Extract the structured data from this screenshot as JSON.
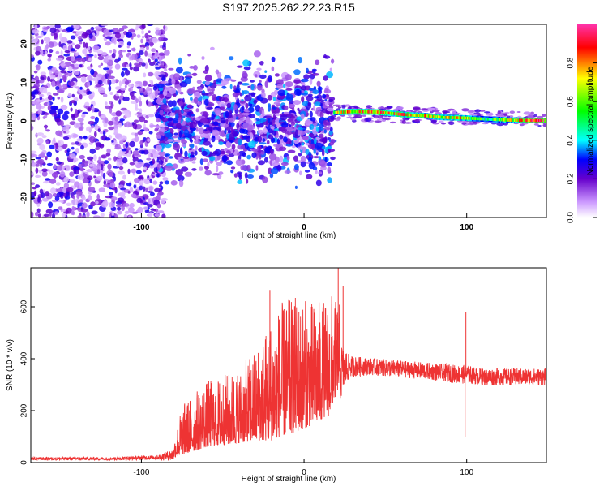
{
  "figure": {
    "title": "S197.2025.262.22.23.R15"
  },
  "chart_data": [
    {
      "type": "heatmap",
      "xlabel": "Height of straight line (km)",
      "ylabel": "Frequency (Hz)",
      "xlim": [
        -168,
        149
      ],
      "ylim": [
        -25,
        25
      ],
      "x_ticks": [
        -100,
        0,
        100
      ],
      "y_ticks": [
        -20,
        -10,
        0,
        10,
        20
      ],
      "grid": false,
      "colorbar": {
        "label": "Normalized spectral amplitude",
        "range": [
          0,
          1
        ],
        "ticks": [
          "0.0",
          "0.2",
          "0.4",
          "0.6",
          "0.8"
        ],
        "colors": [
          "#ffffff",
          "#cc99ff",
          "#6600cc",
          "#0000ff",
          "#00ffff",
          "#00ff00",
          "#ffff00",
          "#ff0000",
          "#ff33aa"
        ]
      },
      "trace": {
        "description_points": [
          {
            "x": 18,
            "y": 2.2,
            "v": 0.75
          },
          {
            "x": 30,
            "y": 2.4,
            "v": 0.9
          },
          {
            "x": 45,
            "y": 2.3,
            "v": 0.95
          },
          {
            "x": 62,
            "y": 1.6,
            "v": 0.9
          },
          {
            "x": 75,
            "y": 1.3,
            "v": 0.85
          },
          {
            "x": 85,
            "y": 0.9,
            "v": 0.8
          },
          {
            "x": 95,
            "y": 0.8,
            "v": 0.9
          },
          {
            "x": 110,
            "y": 0.5,
            "v": 0.6
          },
          {
            "x": 125,
            "y": 0.2,
            "v": 0.75
          },
          {
            "x": 140,
            "y": 0.1,
            "v": 1.0
          }
        ]
      }
    },
    {
      "type": "line",
      "xlabel": "Height of straight line (km)",
      "ylabel": "SNR (10 * v/v)",
      "xlim": [
        -168,
        149
      ],
      "ylim": [
        0,
        750
      ],
      "x_ticks": [
        -100,
        0,
        100
      ],
      "y_ticks": [
        0,
        200,
        400,
        600
      ],
      "grid": false,
      "series": [
        {
          "color": "#ee3333",
          "envelope": {
            "x": [
              -168,
              -120,
              -90,
              -80,
              -75,
              -60,
              -40,
              -30,
              -20,
              -15,
              -5,
              5,
              15,
              22,
              28,
              40,
              60,
              80,
              95,
              100,
              110,
              130,
              149
            ],
            "base": [
              15,
              15,
              20,
              30,
              60,
              100,
              120,
              140,
              160,
              180,
              200,
              220,
              250,
              350,
              370,
              370,
              360,
              350,
              340,
              340,
              330,
              330,
              330
            ],
            "amp": [
              10,
              10,
              15,
              40,
              120,
              160,
              180,
              220,
              300,
              320,
              330,
              300,
              280,
              200,
              70,
              55,
              55,
              55,
              60,
              60,
              55,
              55,
              55
            ]
          },
          "spikes": [
            {
              "x": -21,
              "y": 665
            },
            {
              "x": 17,
              "y": 640
            },
            {
              "x": 21,
              "y": 750
            },
            {
              "x": 24,
              "y": 680
            },
            {
              "x": 99,
              "y": 100
            },
            {
              "x": 99.5,
              "y": 580
            }
          ]
        }
      ]
    }
  ]
}
